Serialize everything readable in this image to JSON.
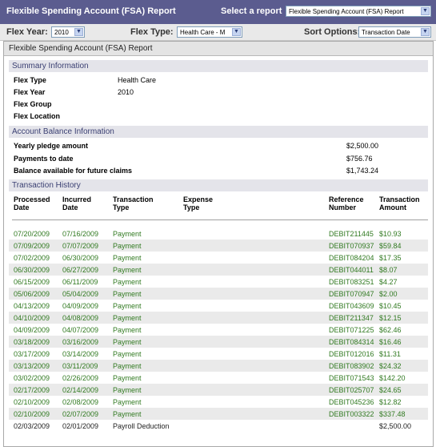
{
  "header": {
    "title": "Flexible Spending Account (FSA) Report",
    "select_label": "Select a report",
    "report_select_value": "Flexible Spending Account (FSA) Report"
  },
  "filters": {
    "flex_year_label": "Flex Year:",
    "flex_year_value": "2010",
    "flex_type_label": "Flex Type:",
    "flex_type_value": "Health Care - M",
    "sort_label": "Sort Options:",
    "sort_value": "Transaction Date"
  },
  "panel": {
    "title": "Flexible Spending Account (FSA) Report"
  },
  "summary": {
    "heading": "Summary Information",
    "rows": [
      {
        "label": "Flex Type",
        "value": "Health Care"
      },
      {
        "label": "Flex Year",
        "value": "2010"
      },
      {
        "label": "Flex Group",
        "value": ""
      },
      {
        "label": "Flex Location",
        "value": ""
      }
    ]
  },
  "balance": {
    "heading": "Account Balance Information",
    "rows": [
      {
        "label": "Yearly pledge amount",
        "value": "$2,500.00"
      },
      {
        "label": "Payments to date",
        "value": "$756.76"
      },
      {
        "label": "Balance available for future claims",
        "value": "$1,743.24"
      }
    ]
  },
  "history": {
    "heading": "Transaction History",
    "columns": [
      {
        "line1": "Processed",
        "line2": "Date"
      },
      {
        "line1": "Incurred",
        "line2": "Date"
      },
      {
        "line1": "Transaction",
        "line2": "Type"
      },
      {
        "line1": "Expense",
        "line2": "Type"
      },
      {
        "line1": "Reference",
        "line2": "Number"
      },
      {
        "line1": "Transaction",
        "line2": "Amount"
      }
    ],
    "rows": [
      {
        "processed": "07/20/2009",
        "incurred": "07/16/2009",
        "type": "Payment",
        "expense": "",
        "reference": "DEBIT211445",
        "amount": "$10.93"
      },
      {
        "processed": "07/09/2009",
        "incurred": "07/07/2009",
        "type": "Payment",
        "expense": "",
        "reference": "DEBIT070937",
        "amount": "$59.84"
      },
      {
        "processed": "07/02/2009",
        "incurred": "06/30/2009",
        "type": "Payment",
        "expense": "",
        "reference": "DEBIT084204",
        "amount": "$17.35"
      },
      {
        "processed": "06/30/2009",
        "incurred": "06/27/2009",
        "type": "Payment",
        "expense": "",
        "reference": "DEBIT044011",
        "amount": "$8.07"
      },
      {
        "processed": "06/15/2009",
        "incurred": "06/11/2009",
        "type": "Payment",
        "expense": "",
        "reference": "DEBIT083251",
        "amount": "$4.27"
      },
      {
        "processed": "05/06/2009",
        "incurred": "05/04/2009",
        "type": "Payment",
        "expense": "",
        "reference": "DEBIT070947",
        "amount": "$2.00"
      },
      {
        "processed": "04/13/2009",
        "incurred": "04/09/2009",
        "type": "Payment",
        "expense": "",
        "reference": "DEBIT043609",
        "amount": "$10.45"
      },
      {
        "processed": "04/10/2009",
        "incurred": "04/08/2009",
        "type": "Payment",
        "expense": "",
        "reference": "DEBIT211347",
        "amount": "$12.15"
      },
      {
        "processed": "04/09/2009",
        "incurred": "04/07/2009",
        "type": "Payment",
        "expense": "",
        "reference": "DEBIT071225",
        "amount": "$62.46"
      },
      {
        "processed": "03/18/2009",
        "incurred": "03/16/2009",
        "type": "Payment",
        "expense": "",
        "reference": "DEBIT084314",
        "amount": "$16.46"
      },
      {
        "processed": "03/17/2009",
        "incurred": "03/14/2009",
        "type": "Payment",
        "expense": "",
        "reference": "DEBIT012016",
        "amount": "$11.31"
      },
      {
        "processed": "03/13/2009",
        "incurred": "03/11/2009",
        "type": "Payment",
        "expense": "",
        "reference": "DEBIT083902",
        "amount": "$24.32"
      },
      {
        "processed": "03/02/2009",
        "incurred": "02/26/2009",
        "type": "Payment",
        "expense": "",
        "reference": "DEBIT071543",
        "amount": "$142.20"
      },
      {
        "processed": "02/17/2009",
        "incurred": "02/14/2009",
        "type": "Payment",
        "expense": "",
        "reference": "DEBIT025707",
        "amount": "$24.65"
      },
      {
        "processed": "02/10/2009",
        "incurred": "02/08/2009",
        "type": "Payment",
        "expense": "",
        "reference": "DEBIT045236",
        "amount": "$12.82"
      },
      {
        "processed": "02/10/2009",
        "incurred": "02/07/2009",
        "type": "Payment",
        "expense": "",
        "reference": "DEBIT003322",
        "amount": "$337.48"
      },
      {
        "processed": "02/03/2009",
        "incurred": "02/01/2009",
        "type": "Payroll Deduction",
        "expense": "",
        "reference": "",
        "amount": "$2,500.00"
      }
    ]
  },
  "colors": {
    "header_bg": "#5b5c8f",
    "section_bg": "#e4e4ea",
    "payment_text": "#317a21",
    "row_alt_bg": "#eaeaea"
  }
}
